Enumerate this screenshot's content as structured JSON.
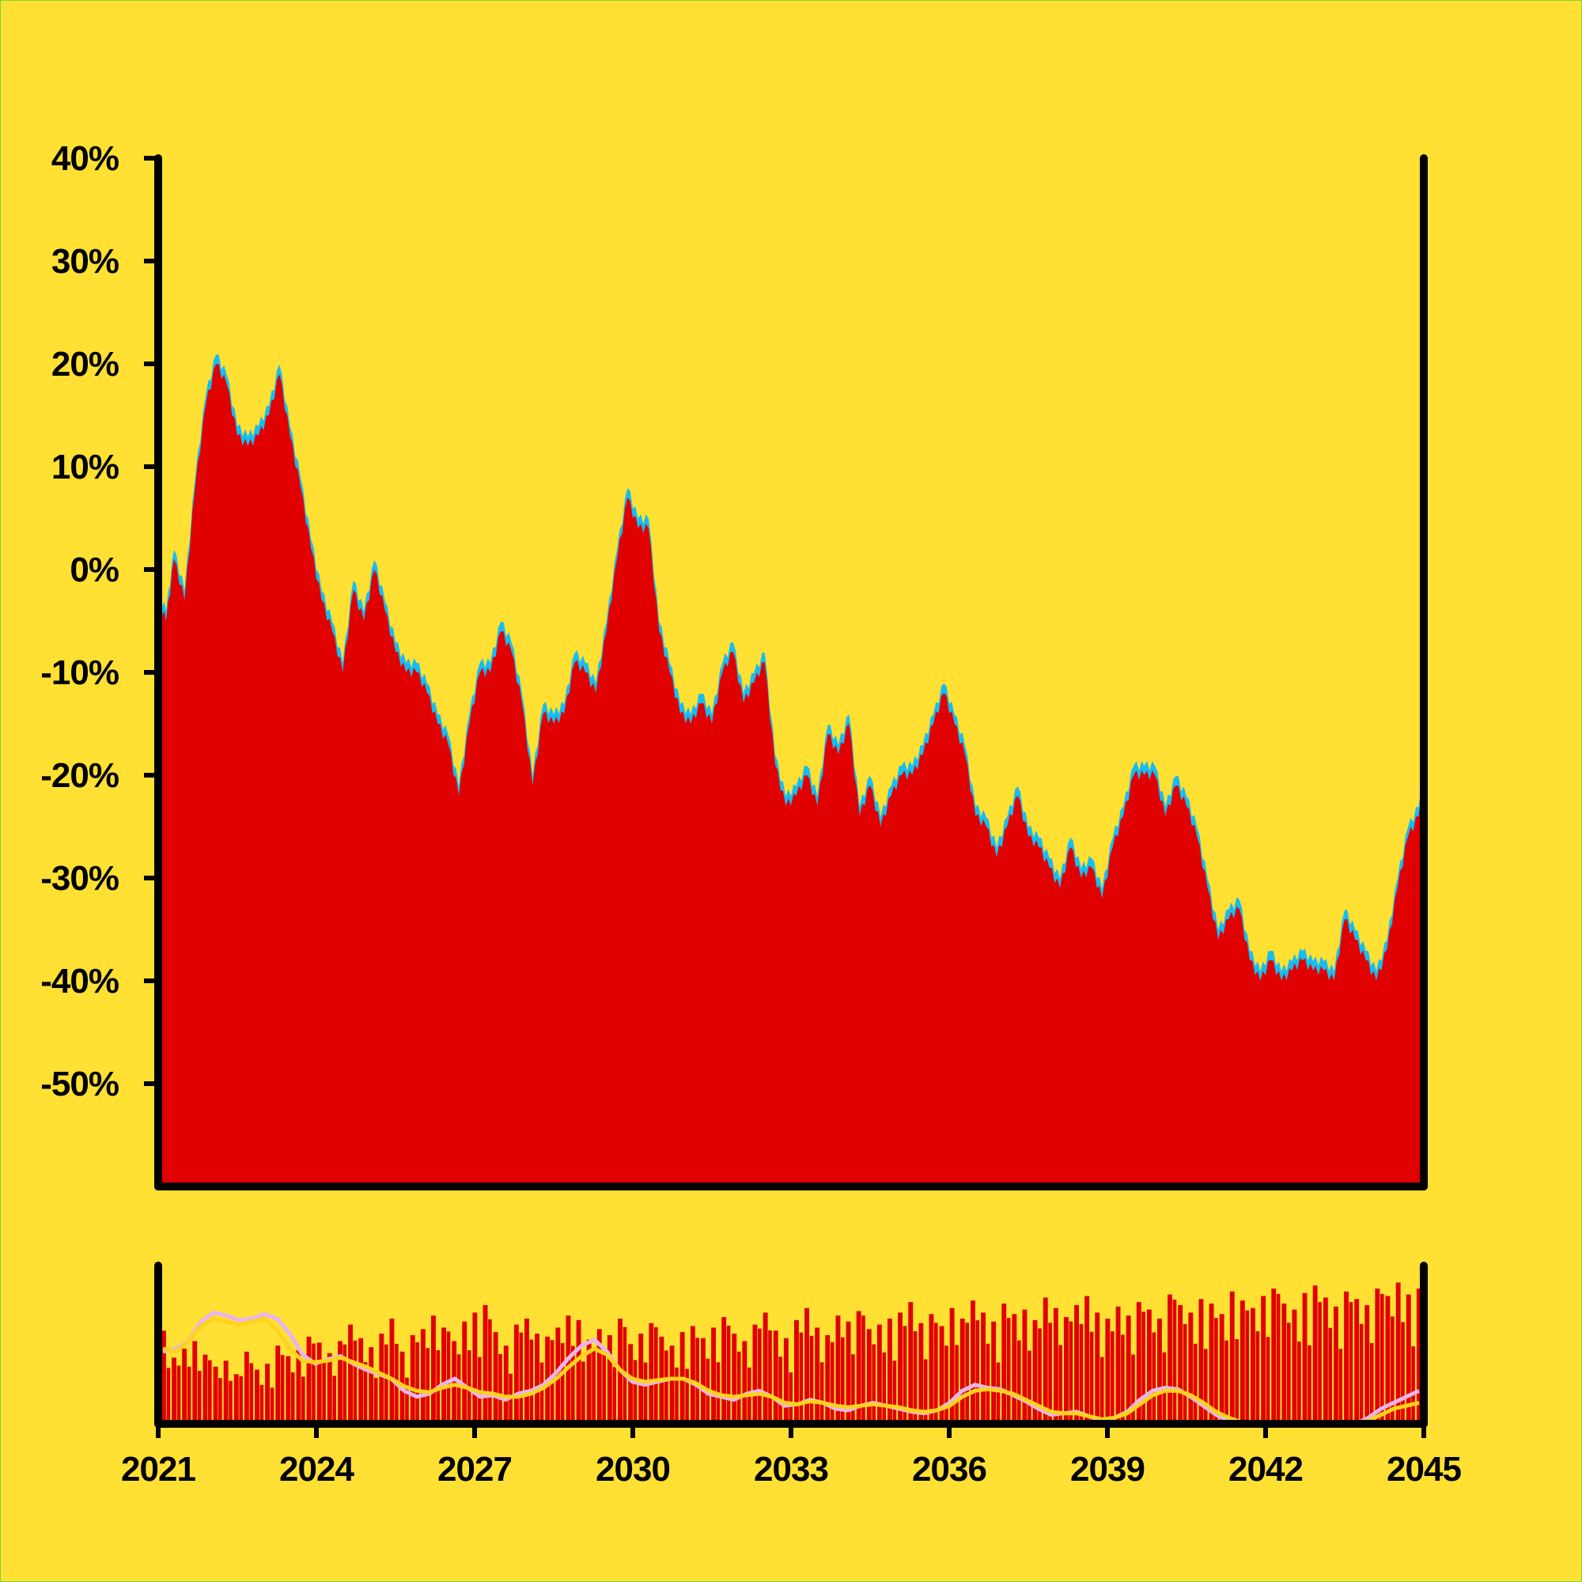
{
  "colors": {
    "background": "#FFE033",
    "area_fill": "#E10000",
    "range_band": "#16BDF2",
    "axis": "#000000",
    "volume_bars": "#E10000",
    "short_ma": "#E8B4F0",
    "long_ma": "#FFD21E"
  },
  "chart_data": [
    {
      "type": "area",
      "title": "",
      "xlabel": "",
      "ylabel": "",
      "xlim": [
        2021,
        2045
      ],
      "ylim": [
        -60,
        40
      ],
      "y_unit": "%",
      "grid": false,
      "x_ticks": [
        "2021",
        "2024",
        "2027",
        "2030",
        "2033",
        "2036",
        "2039",
        "2042",
        "2045"
      ],
      "y_ticks": [
        "40%",
        "30%",
        "20%",
        "10%",
        "0%",
        "-10%",
        "-20%",
        "-30%",
        "-40%",
        "-50%"
      ],
      "series": [
        {
          "x": [
            2021.0,
            2021.15,
            2021.3,
            2021.5,
            2021.7,
            2021.9,
            2022.1,
            2022.3,
            2022.5,
            2022.7,
            2022.9,
            2023.1,
            2023.3,
            2023.5,
            2023.7,
            2023.9,
            2024.1,
            2024.3,
            2024.5,
            2024.7,
            2024.9,
            2025.1,
            2025.3,
            2025.5,
            2025.7,
            2025.9,
            2026.1,
            2026.3,
            2026.5,
            2026.7,
            2026.9,
            2027.1,
            2027.3,
            2027.5,
            2027.7,
            2027.9,
            2028.1,
            2028.3,
            2028.5,
            2028.7,
            2028.9,
            2029.1,
            2029.3,
            2029.5,
            2029.7,
            2029.9,
            2030.1,
            2030.3,
            2030.5,
            2030.7,
            2030.9,
            2031.1,
            2031.3,
            2031.5,
            2031.7,
            2031.9,
            2032.1,
            2032.3,
            2032.5,
            2032.7,
            2032.9,
            2033.1,
            2033.3,
            2033.5,
            2033.7,
            2033.9,
            2034.1,
            2034.3,
            2034.5,
            2034.7,
            2034.9,
            2035.1,
            2035.3,
            2035.5,
            2035.7,
            2035.9,
            2036.1,
            2036.3,
            2036.5,
            2036.7,
            2036.9,
            2037.1,
            2037.3,
            2037.5,
            2037.7,
            2037.9,
            2038.1,
            2038.3,
            2038.5,
            2038.7,
            2038.9,
            2039.1,
            2039.3,
            2039.5,
            2039.7,
            2039.9,
            2040.1,
            2040.3,
            2040.5,
            2040.7,
            2040.9,
            2041.1,
            2041.3,
            2041.5,
            2041.7,
            2041.9,
            2042.1,
            2042.3,
            2042.5,
            2042.7,
            2042.9,
            2043.1,
            2043.3,
            2043.5,
            2043.7,
            2043.9,
            2044.1,
            2044.3,
            2044.5,
            2044.7,
            2044.9,
            2045.0
          ],
          "y": [
            -3,
            -5,
            1,
            -3,
            8,
            16,
            20,
            18,
            13,
            12,
            13,
            15,
            19,
            13,
            8,
            2,
            -3,
            -6,
            -10,
            -2,
            -5,
            0,
            -4,
            -8,
            -10,
            -10,
            -12,
            -15,
            -17,
            -22,
            -15,
            -10,
            -10,
            -6,
            -8,
            -13,
            -21,
            -14,
            -15,
            -14,
            -9,
            -10,
            -12,
            -6,
            1,
            7,
            4,
            4,
            -6,
            -10,
            -14,
            -15,
            -13,
            -15,
            -10,
            -8,
            -13,
            -11,
            -9,
            -19,
            -23,
            -22,
            -20,
            -23,
            -16,
            -18,
            -15,
            -24,
            -21,
            -25,
            -22,
            -20,
            -20,
            -18,
            -15,
            -12,
            -15,
            -18,
            -24,
            -25,
            -28,
            -25,
            -22,
            -26,
            -27,
            -29,
            -31,
            -27,
            -30,
            -29,
            -32,
            -27,
            -24,
            -20,
            -20,
            -20,
            -24,
            -21,
            -23,
            -26,
            -31,
            -36,
            -34,
            -33,
            -38,
            -40,
            -38,
            -40,
            -39,
            -38,
            -39,
            -39,
            -40,
            -34,
            -36,
            -38,
            -40,
            -37,
            -31,
            -26,
            -24,
            -22
          ]
        }
      ]
    },
    {
      "type": "bar",
      "title": "",
      "xlabel": "",
      "ylabel": "",
      "xlim": [
        2021,
        2045
      ],
      "ylim": [
        0,
        1
      ],
      "grid": false,
      "volume": [
        0.62,
        0.44,
        0.5,
        0.55,
        0.46,
        0.38,
        0.42,
        0.33,
        0.48,
        0.36,
        0.4,
        0.52,
        0.45,
        0.49,
        0.58,
        0.54,
        0.47,
        0.55,
        0.66,
        0.57,
        0.51,
        0.6,
        0.7,
        0.48,
        0.59,
        0.63,
        0.72,
        0.64,
        0.55,
        0.68,
        0.74,
        0.79,
        0.61,
        0.52,
        0.66,
        0.7,
        0.6,
        0.58,
        0.64,
        0.72,
        0.69,
        0.56,
        0.63,
        0.59,
        0.7,
        0.53,
        0.6,
        0.67,
        0.58,
        0.52,
        0.61,
        0.65,
        0.57,
        0.64,
        0.71,
        0.6,
        0.55,
        0.66,
        0.74,
        0.62,
        0.57,
        0.69,
        0.77,
        0.64,
        0.59,
        0.72,
        0.68,
        0.75,
        0.63,
        0.66,
        0.7,
        0.74,
        0.81,
        0.67,
        0.73,
        0.65,
        0.77,
        0.7,
        0.82,
        0.74,
        0.68,
        0.8,
        0.73,
        0.76,
        0.69,
        0.84,
        0.77,
        0.71,
        0.79,
        0.85,
        0.74,
        0.7,
        0.78,
        0.72,
        0.81,
        0.76,
        0.7,
        0.86,
        0.79,
        0.74,
        0.83,
        0.8,
        0.73,
        0.88,
        0.82,
        0.77,
        0.85,
        0.9,
        0.8,
        0.76,
        0.87,
        0.92,
        0.84,
        0.78,
        0.88,
        0.83,
        0.79,
        0.9,
        0.85,
        0.94,
        0.86,
        0.9
      ],
      "series": [
        {
          "y": [
            0.48,
            0.5,
            0.55,
            0.68,
            0.74,
            0.72,
            0.69,
            0.7,
            0.73,
            0.7,
            0.6,
            0.46,
            0.4,
            0.43,
            0.45,
            0.4,
            0.36,
            0.33,
            0.3,
            0.22,
            0.18,
            0.2,
            0.26,
            0.3,
            0.24,
            0.18,
            0.19,
            0.16,
            0.2,
            0.22,
            0.26,
            0.34,
            0.44,
            0.52,
            0.56,
            0.48,
            0.36,
            0.28,
            0.26,
            0.28,
            0.3,
            0.3,
            0.26,
            0.2,
            0.18,
            0.16,
            0.2,
            0.22,
            0.18,
            0.12,
            0.13,
            0.16,
            0.14,
            0.1,
            0.09,
            0.12,
            0.14,
            0.12,
            0.1,
            0.08,
            0.07,
            0.09,
            0.14,
            0.22,
            0.26,
            0.24,
            0.23,
            0.19,
            0.15,
            0.1,
            0.06,
            0.07,
            0.08,
            0.05,
            0.02,
            0.04,
            0.08,
            0.16,
            0.22,
            0.24,
            0.23,
            0.18,
            0.12,
            0.06,
            0.02,
            0.0,
            0.0,
            0.0,
            0.0,
            0.0,
            0.0,
            0.0,
            0.0,
            0.0,
            0.0,
            0.04,
            0.1,
            0.14,
            0.18,
            0.22
          ]
        },
        {
          "y": [
            0.5,
            0.48,
            0.55,
            0.65,
            0.7,
            0.68,
            0.66,
            0.68,
            0.7,
            0.62,
            0.5,
            0.42,
            0.41,
            0.42,
            0.44,
            0.41,
            0.38,
            0.34,
            0.3,
            0.25,
            0.22,
            0.21,
            0.24,
            0.26,
            0.24,
            0.21,
            0.2,
            0.18,
            0.18,
            0.2,
            0.24,
            0.3,
            0.38,
            0.45,
            0.5,
            0.46,
            0.36,
            0.3,
            0.28,
            0.29,
            0.3,
            0.3,
            0.27,
            0.22,
            0.19,
            0.18,
            0.19,
            0.2,
            0.18,
            0.14,
            0.13,
            0.15,
            0.14,
            0.12,
            0.11,
            0.12,
            0.13,
            0.12,
            0.11,
            0.09,
            0.08,
            0.09,
            0.12,
            0.18,
            0.22,
            0.23,
            0.22,
            0.2,
            0.16,
            0.12,
            0.08,
            0.07,
            0.07,
            0.05,
            0.03,
            0.04,
            0.07,
            0.13,
            0.19,
            0.22,
            0.22,
            0.19,
            0.14,
            0.08,
            0.04,
            0.01,
            0.0,
            0.0,
            0.0,
            0.0,
            0.0,
            0.0,
            0.0,
            0.0,
            0.0,
            0.02,
            0.06,
            0.1,
            0.12,
            0.14
          ]
        }
      ]
    }
  ]
}
